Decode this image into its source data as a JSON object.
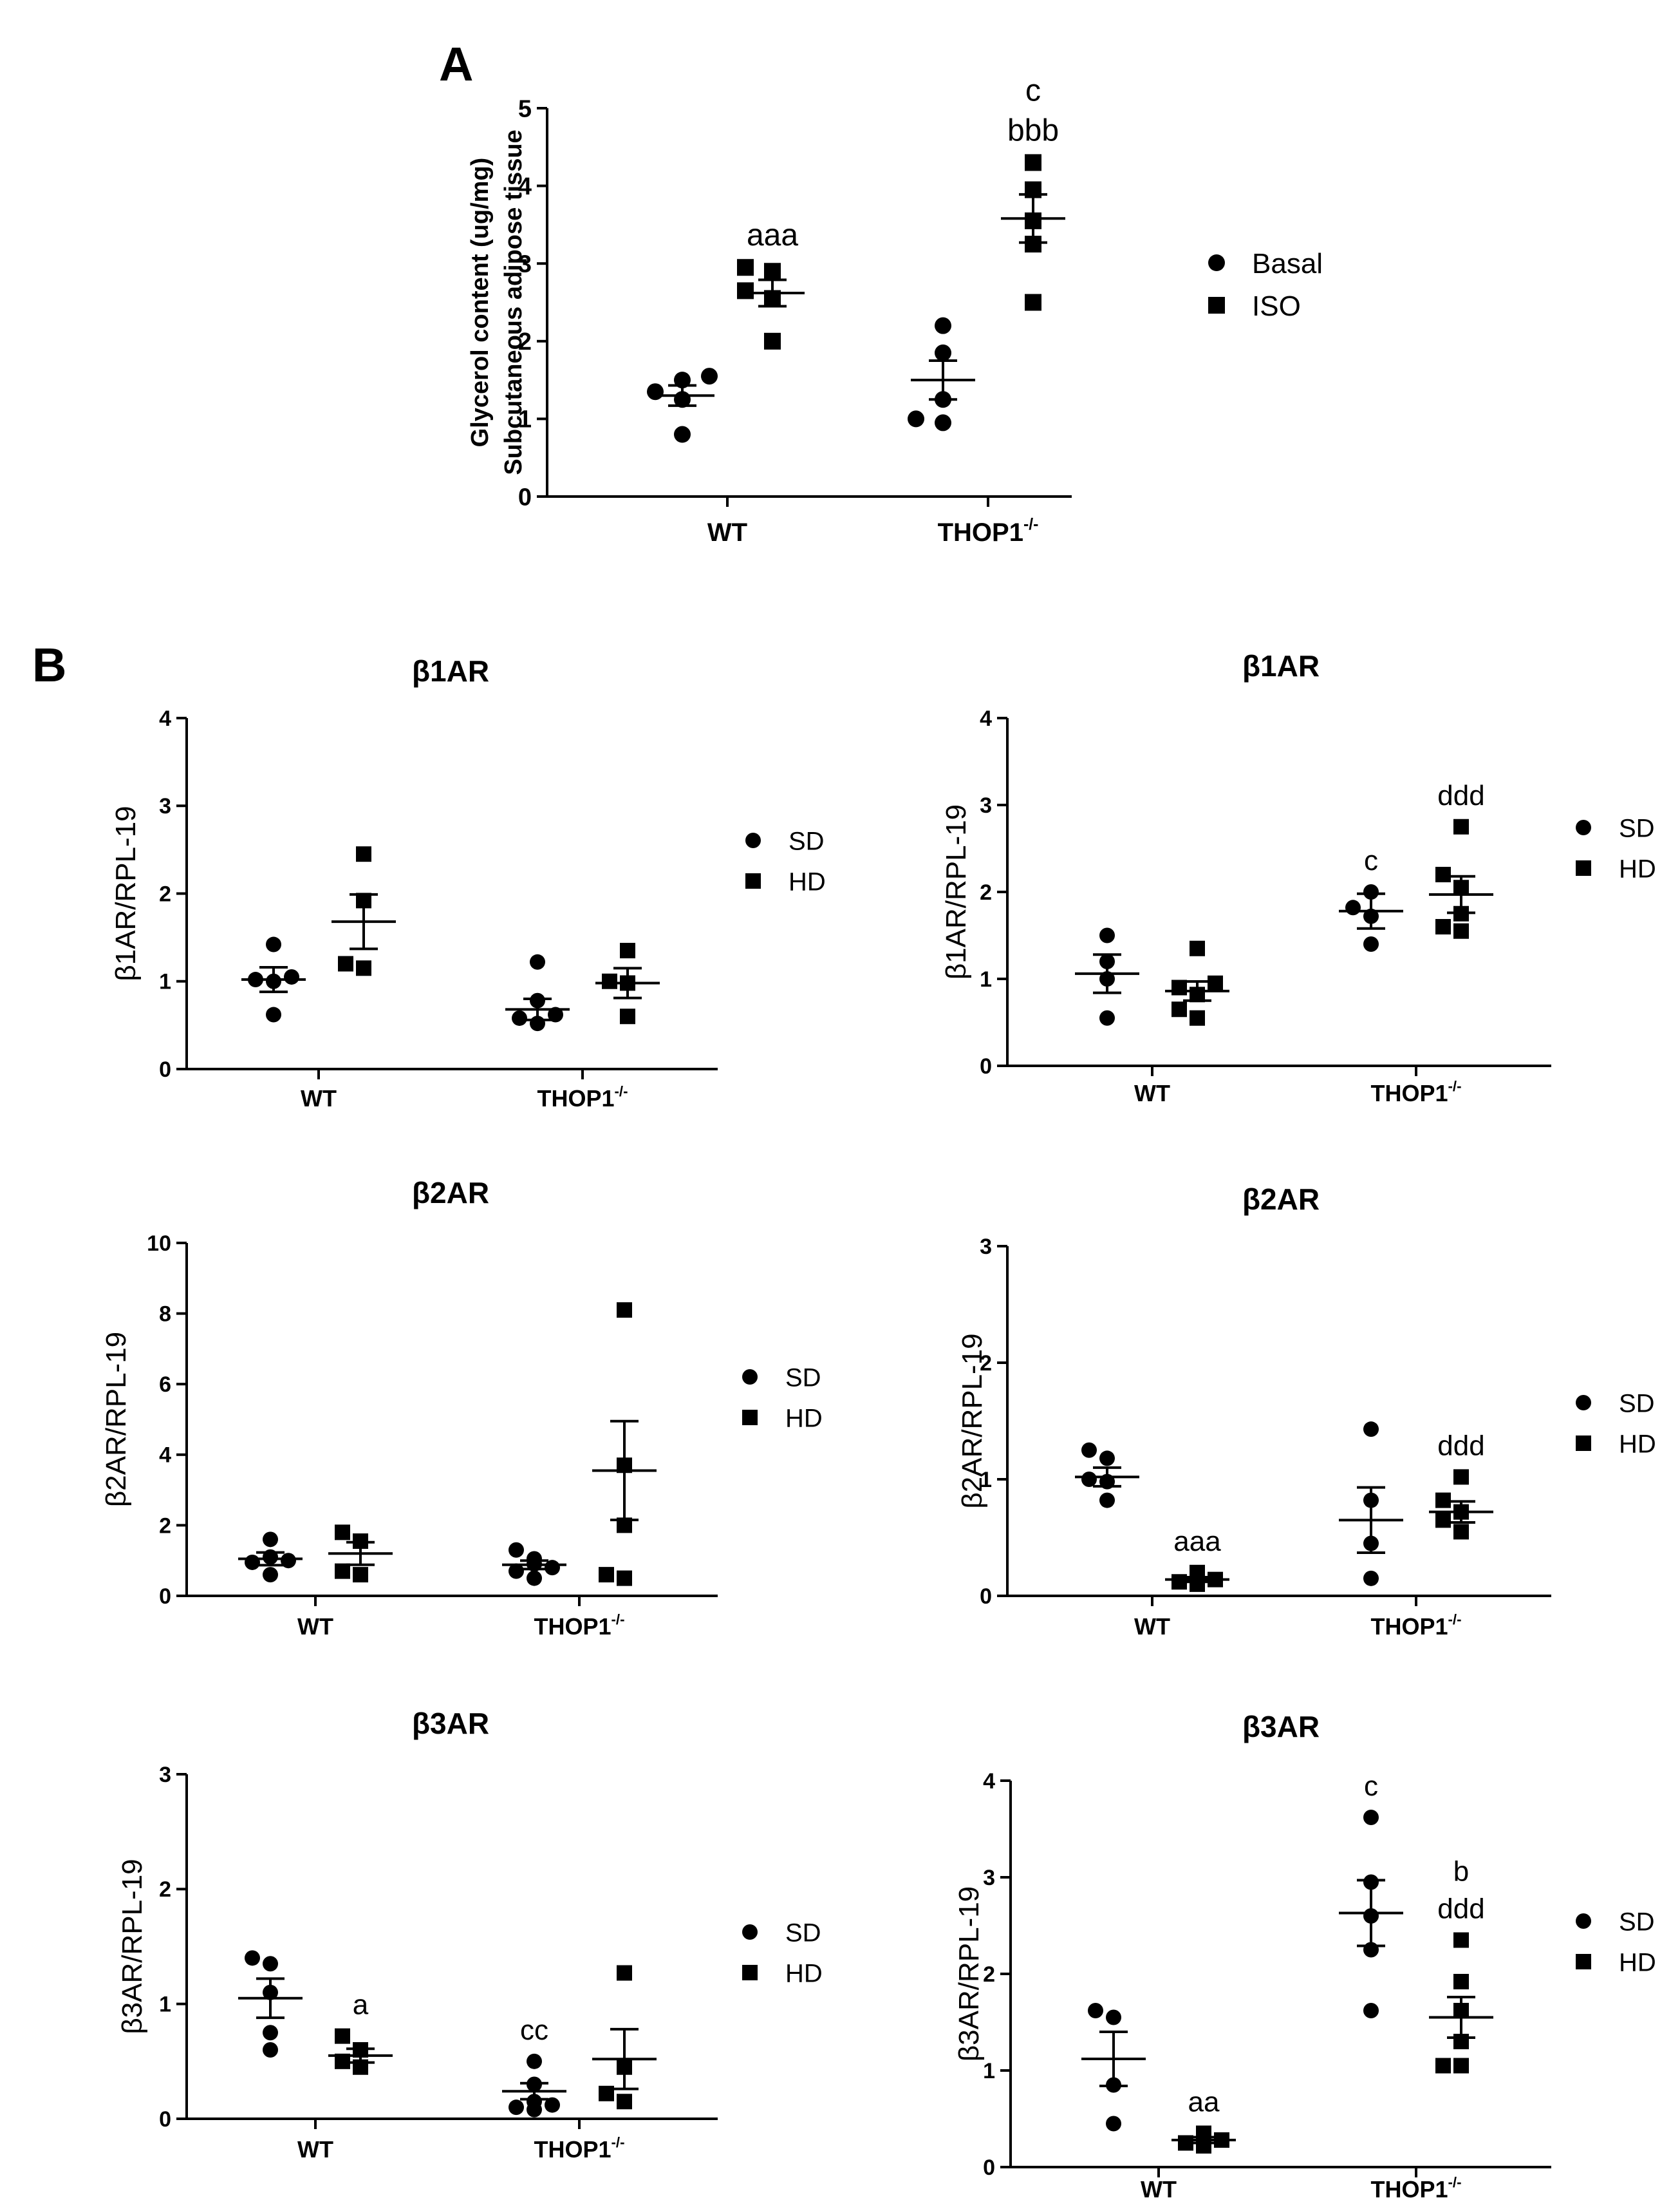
{
  "figure": {
    "panel_labels": [
      "A",
      "B"
    ],
    "colors": {
      "ink": "#000000",
      "background": "#ffffff"
    }
  },
  "chart_data": [
    {
      "id": "A",
      "type": "scatter",
      "title": "",
      "ylabel_lines": [
        "Glycerol content (ug/mg)",
        "Subcutaneous adipose tissue"
      ],
      "ylim": [
        0,
        5
      ],
      "yticks": [
        0,
        1,
        2,
        3,
        4,
        5
      ],
      "categories": [
        {
          "name": "WT",
          "sup": ""
        },
        {
          "name": "THOP1",
          "sup": "-/-"
        }
      ],
      "series": [
        {
          "name": "Basal",
          "marker": "circle",
          "groups": [
            {
              "points": [
                1.55,
                1.5,
                1.35,
                1.25,
                0.8
              ],
              "mean": 1.3,
              "sem": 0.13
            },
            {
              "points": [
                2.2,
                1.85,
                1.25,
                1.0,
                0.95
              ],
              "mean": 1.5,
              "sem": 0.25
            }
          ]
        },
        {
          "name": "ISO",
          "marker": "square",
          "groups": [
            {
              "points": [
                2.95,
                2.9,
                2.65,
                2.55,
                2.0
              ],
              "mean": 2.62,
              "sem": 0.17
            },
            {
              "points": [
                4.3,
                3.95,
                3.55,
                3.25,
                2.5
              ],
              "mean": 3.58,
              "sem": 0.31
            }
          ]
        }
      ],
      "annotations": [
        {
          "cat": 0,
          "series": 1,
          "lines": [
            "aaa"
          ]
        },
        {
          "cat": 1,
          "series": 1,
          "lines": [
            "c",
            "bbb"
          ]
        }
      ],
      "legend": [
        "Basal",
        "ISO"
      ]
    },
    {
      "id": "B1",
      "type": "scatter",
      "title": "β1AR",
      "ylabel_lines": [
        "β1AR/RPL-19"
      ],
      "ylim": [
        0,
        4
      ],
      "yticks": [
        0,
        1,
        2,
        3,
        4
      ],
      "categories": [
        {
          "name": "WT",
          "sup": ""
        },
        {
          "name": "THOP1",
          "sup": "-/-"
        }
      ],
      "series": [
        {
          "name": "SD",
          "marker": "circle",
          "groups": [
            {
              "points": [
                1.42,
                1.05,
                1.02,
                1.0,
                0.62
              ],
              "mean": 1.02,
              "sem": 0.14
            },
            {
              "points": [
                1.22,
                0.78,
                0.62,
                0.58,
                0.52
              ],
              "mean": 0.68,
              "sem": 0.12
            }
          ]
        },
        {
          "name": "HD",
          "marker": "square",
          "groups": [
            {
              "points": [
                2.45,
                1.92,
                1.2,
                1.15
              ],
              "mean": 1.68,
              "sem": 0.31
            },
            {
              "points": [
                1.35,
                1.0,
                0.98,
                0.6
              ],
              "mean": 0.98,
              "sem": 0.17
            }
          ]
        }
      ],
      "annotations": [],
      "legend": [
        "SD",
        "HD"
      ]
    },
    {
      "id": "B2",
      "type": "scatter",
      "title": "β1AR",
      "ylabel_lines": [
        "β1AR/RPL-19"
      ],
      "ylim": [
        0,
        4
      ],
      "yticks": [
        0,
        1,
        2,
        3,
        4
      ],
      "categories": [
        {
          "name": "WT",
          "sup": ""
        },
        {
          "name": "THOP1",
          "sup": "-/-"
        }
      ],
      "series": [
        {
          "name": "SD",
          "marker": "circle",
          "groups": [
            {
              "points": [
                1.5,
                1.2,
                1.0,
                0.55
              ],
              "mean": 1.06,
              "sem": 0.22
            },
            {
              "points": [
                2.0,
                1.82,
                1.72,
                1.4
              ],
              "mean": 1.78,
              "sem": 0.2
            }
          ]
        },
        {
          "name": "HD",
          "marker": "square",
          "groups": [
            {
              "points": [
                1.35,
                0.95,
                0.9,
                0.82,
                0.65,
                0.55
              ],
              "mean": 0.86,
              "sem": 0.11
            },
            {
              "points": [
                2.75,
                2.2,
                2.05,
                1.75,
                1.6,
                1.55
              ],
              "mean": 1.97,
              "sem": 0.21
            }
          ]
        }
      ],
      "annotations": [
        {
          "cat": 1,
          "series": 0,
          "lines": [
            "c"
          ]
        },
        {
          "cat": 1,
          "series": 1,
          "lines": [
            "ddd"
          ]
        }
      ],
      "legend": [
        "SD",
        "HD"
      ]
    },
    {
      "id": "B3",
      "type": "scatter",
      "title": "β2AR",
      "ylabel_lines": [
        "β2AR/RPL-19"
      ],
      "ylim": [
        0,
        10
      ],
      "yticks": [
        0,
        2,
        4,
        6,
        8,
        10
      ],
      "categories": [
        {
          "name": "WT",
          "sup": ""
        },
        {
          "name": "THOP1",
          "sup": "-/-"
        }
      ],
      "series": [
        {
          "name": "SD",
          "marker": "circle",
          "groups": [
            {
              "points": [
                1.6,
                1.1,
                1.0,
                0.95,
                0.6
              ],
              "mean": 1.05,
              "sem": 0.18
            },
            {
              "points": [
                1.3,
                1.05,
                0.9,
                0.8,
                0.7,
                0.5
              ],
              "mean": 0.88,
              "sem": 0.12
            }
          ]
        },
        {
          "name": "HD",
          "marker": "square",
          "groups": [
            {
              "points": [
                1.8,
                1.55,
                0.7,
                0.6
              ],
              "mean": 1.2,
              "sem": 0.32
            },
            {
              "points": [
                8.1,
                3.7,
                2.0,
                0.6,
                0.5
              ],
              "mean": 3.55,
              "sem": 1.4
            }
          ]
        }
      ],
      "annotations": [],
      "legend": [
        "SD",
        "HD"
      ]
    },
    {
      "id": "B4",
      "type": "scatter",
      "title": "β2AR",
      "ylabel_lines": [
        "β2AR/RPL-19"
      ],
      "ylim": [
        0,
        3
      ],
      "yticks": [
        0,
        1,
        2,
        3
      ],
      "categories": [
        {
          "name": "WT",
          "sup": ""
        },
        {
          "name": "THOP1",
          "sup": "-/-"
        }
      ],
      "series": [
        {
          "name": "SD",
          "marker": "circle",
          "groups": [
            {
              "points": [
                1.25,
                1.18,
                1.0,
                0.98,
                0.82
              ],
              "mean": 1.02,
              "sem": 0.08
            },
            {
              "points": [
                1.43,
                0.82,
                0.45,
                0.15
              ],
              "mean": 0.65,
              "sem": 0.28
            }
          ]
        },
        {
          "name": "HD",
          "marker": "square",
          "groups": [
            {
              "points": [
                0.2,
                0.16,
                0.14,
                0.12,
                0.1
              ],
              "mean": 0.14,
              "sem": 0.02
            },
            {
              "points": [
                1.02,
                0.82,
                0.72,
                0.65,
                0.55
              ],
              "mean": 0.72,
              "sem": 0.09
            }
          ]
        }
      ],
      "annotations": [
        {
          "cat": 0,
          "series": 1,
          "lines": [
            "aaa"
          ]
        },
        {
          "cat": 1,
          "series": 1,
          "lines": [
            "ddd"
          ]
        }
      ],
      "legend": [
        "SD",
        "HD"
      ]
    },
    {
      "id": "B5",
      "type": "scatter",
      "title": "β3AR",
      "ylabel_lines": [
        "β3AR/RPL-19"
      ],
      "ylim": [
        0,
        3
      ],
      "yticks": [
        0,
        1,
        2,
        3
      ],
      "categories": [
        {
          "name": "WT",
          "sup": ""
        },
        {
          "name": "THOP1",
          "sup": "-/-"
        }
      ],
      "series": [
        {
          "name": "SD",
          "marker": "circle",
          "groups": [
            {
              "points": [
                1.4,
                1.35,
                1.1,
                0.75,
                0.6
              ],
              "mean": 1.05,
              "sem": 0.17
            },
            {
              "points": [
                0.5,
                0.3,
                0.15,
                0.12,
                0.1,
                0.08
              ],
              "mean": 0.24,
              "sem": 0.07
            }
          ]
        },
        {
          "name": "HD",
          "marker": "square",
          "groups": [
            {
              "points": [
                0.72,
                0.6,
                0.5,
                0.45
              ],
              "mean": 0.55,
              "sem": 0.06
            },
            {
              "points": [
                1.27,
                0.45,
                0.22,
                0.15
              ],
              "mean": 0.52,
              "sem": 0.26
            }
          ]
        }
      ],
      "annotations": [
        {
          "cat": 0,
          "series": 1,
          "lines": [
            "a"
          ]
        },
        {
          "cat": 1,
          "series": 0,
          "lines": [
            "cc"
          ]
        }
      ],
      "legend": [
        "SD",
        "HD"
      ]
    },
    {
      "id": "B6",
      "type": "scatter",
      "title": "β3AR",
      "ylabel_lines": [
        "β3AR/RPL-19"
      ],
      "ylim": [
        0,
        4
      ],
      "yticks": [
        0,
        1,
        2,
        3,
        4
      ],
      "categories": [
        {
          "name": "WT",
          "sup": ""
        },
        {
          "name": "THOP1",
          "sup": "-/-"
        }
      ],
      "series": [
        {
          "name": "SD",
          "marker": "circle",
          "groups": [
            {
              "points": [
                1.62,
                1.55,
                0.85,
                0.45
              ],
              "mean": 1.12,
              "sem": 0.28
            },
            {
              "points": [
                3.62,
                2.95,
                2.6,
                2.25,
                1.62
              ],
              "mean": 2.63,
              "sem": 0.34
            }
          ]
        },
        {
          "name": "HD",
          "marker": "square",
          "groups": [
            {
              "points": [
                0.35,
                0.3,
                0.28,
                0.25,
                0.22
              ],
              "mean": 0.28,
              "sem": 0.03
            },
            {
              "points": [
                2.35,
                1.92,
                1.62,
                1.3,
                1.05,
                1.05
              ],
              "mean": 1.55,
              "sem": 0.21
            }
          ]
        }
      ],
      "annotations": [
        {
          "cat": 0,
          "series": 1,
          "lines": [
            "aa"
          ]
        },
        {
          "cat": 1,
          "series": 0,
          "lines": [
            "c"
          ]
        },
        {
          "cat": 1,
          "series": 1,
          "lines": [
            "b",
            "ddd"
          ]
        }
      ],
      "legend": [
        "SD",
        "HD"
      ]
    }
  ]
}
